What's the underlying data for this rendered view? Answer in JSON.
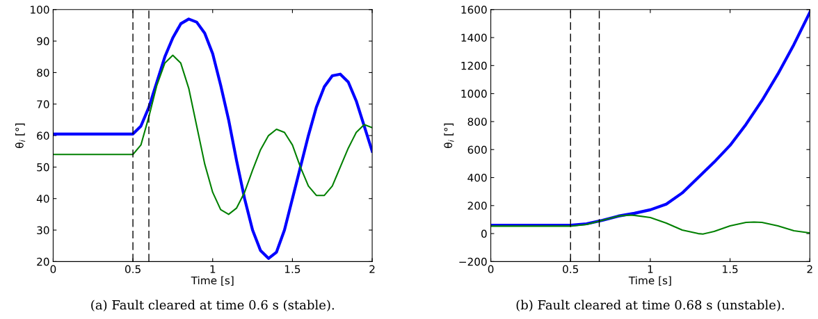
{
  "chart_data": [
    {
      "type": "line",
      "xlabel": "Time [s]",
      "ylabel": "θ$_{i}$ [°]",
      "xlim": [
        0,
        2
      ],
      "ylim": [
        20,
        100
      ],
      "xticks": [
        0,
        0.5,
        1,
        1.5,
        2
      ],
      "yticks": [
        20,
        30,
        40,
        50,
        60,
        70,
        80,
        90,
        100
      ],
      "grid": false,
      "legend": false,
      "x": [
        0,
        0.5,
        0.55,
        0.6,
        0.65,
        0.7,
        0.75,
        0.8,
        0.85,
        0.9,
        0.95,
        1.0,
        1.05,
        1.1,
        1.15,
        1.2,
        1.25,
        1.3,
        1.35,
        1.4,
        1.45,
        1.5,
        1.55,
        1.6,
        1.65,
        1.7,
        1.75,
        1.8,
        1.85,
        1.9,
        1.95,
        2.0
      ],
      "series": [
        {
          "color": "#0000ff",
          "values": [
            60.5,
            60.5,
            63,
            69,
            77,
            85,
            91,
            95.5,
            97,
            96,
            92.5,
            86,
            76,
            65,
            52,
            40,
            30,
            23.5,
            21,
            23,
            30,
            40,
            50,
            60,
            69,
            75.5,
            79,
            79.5,
            77,
            71,
            63,
            55
          ]
        },
        {
          "color": "#008000",
          "values": [
            54,
            54,
            57,
            66,
            76,
            83,
            85.5,
            83,
            75,
            63,
            51,
            42,
            36.5,
            35,
            37,
            42,
            49,
            55.5,
            60,
            62,
            61,
            57,
            50,
            44,
            41,
            41,
            44,
            50,
            56,
            61,
            63.5,
            62.5
          ]
        }
      ],
      "ref_lines": [
        {
          "axis": "x",
          "value": 0.5,
          "color": "#000000",
          "line_style": "dashed"
        },
        {
          "axis": "x",
          "value": 0.6,
          "color": "#000000",
          "line_style": "dashed"
        }
      ],
      "annotations": [
        "(a) Fault cleared at time 0.6 s (stable)."
      ]
    },
    {
      "type": "line",
      "xlabel": "Time [s]",
      "ylabel": "θ$_{i}$ [°]",
      "xlim": [
        0,
        2
      ],
      "ylim": [
        -200,
        1600
      ],
      "xticks": [
        0,
        0.5,
        1,
        1.5,
        2
      ],
      "yticks": [
        {
          "value": -200,
          "label": "−200"
        },
        0,
        200,
        400,
        600,
        800,
        1000,
        1200,
        1400,
        1600
      ],
      "grid": false,
      "legend": false,
      "series": [
        {
          "color": "#0000ff",
          "x": [
            0,
            0.5,
            0.6,
            0.7,
            0.8,
            0.9,
            1.0,
            1.1,
            1.2,
            1.3,
            1.4,
            1.5,
            1.6,
            1.7,
            1.8,
            1.9,
            2.0
          ],
          "values": [
            60,
            60,
            70,
            95,
            125,
            145,
            170,
            210,
            290,
            400,
            510,
            630,
            780,
            950,
            1140,
            1350,
            1580
          ]
        },
        {
          "color": "#008000",
          "x": [
            0,
            0.5,
            0.6,
            0.7,
            0.8,
            0.87,
            0.9,
            1.0,
            1.1,
            1.2,
            1.3,
            1.33,
            1.4,
            1.5,
            1.6,
            1.65,
            1.7,
            1.8,
            1.9,
            2.0
          ],
          "values": [
            53,
            53,
            65,
            95,
            125,
            132,
            130,
            115,
            75,
            25,
            0,
            -3,
            15,
            55,
            80,
            82,
            80,
            55,
            20,
            5
          ]
        }
      ],
      "ref_lines": [
        {
          "axis": "x",
          "value": 0.5,
          "color": "#000000",
          "line_style": "dashed"
        },
        {
          "axis": "x",
          "value": 0.68,
          "color": "#000000",
          "line_style": "dashed"
        }
      ],
      "annotations": [
        "(b) Fault cleared at time 0.68 s (unstable)."
      ]
    }
  ]
}
